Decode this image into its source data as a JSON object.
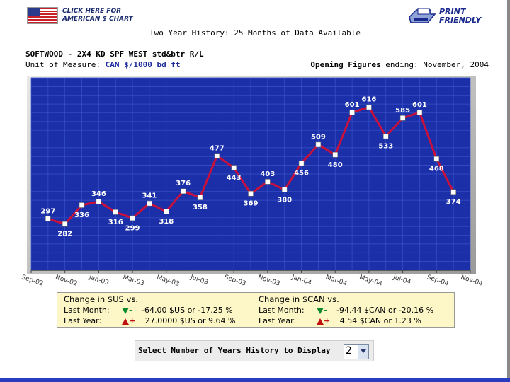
{
  "header": {
    "us_chart_link": [
      "CLICK HERE FOR",
      "AMERICAN $ CHART"
    ],
    "print_label": [
      "PRINT",
      "FRIENDLY"
    ],
    "history_title": "Two Year History: 25 Months of Data Available"
  },
  "product": {
    "name": "SOFTWOOD - 2X4 KD SPF WEST std&btr R/L",
    "uom_label": "Unit of Measure:",
    "uom_value": "CAN $/1000 bd ft",
    "opening_bold": "Opening Figures",
    "opening_rest": "ending: November, 2004"
  },
  "chart_data": {
    "type": "line",
    "x": [
      "2002-10",
      "2002-11",
      "2002-12",
      "2003-01",
      "2003-02",
      "2003-03",
      "2003-04",
      "2003-05",
      "2003-06",
      "2003-07",
      "2003-08",
      "2003-09",
      "2003-10",
      "2003-11",
      "2003-12",
      "2004-01",
      "2004-02",
      "2004-03",
      "2004-04",
      "2004-05",
      "2004-06",
      "2004-07",
      "2004-08",
      "2004-09",
      "2004-10"
    ],
    "values": [
      297,
      282,
      336,
      346,
      316,
      299,
      341,
      318,
      376,
      358,
      477,
      443,
      369,
      403,
      380,
      456,
      509,
      480,
      601,
      616,
      533,
      585,
      601,
      468,
      374
    ],
    "tick_labels": [
      {
        "label": "Sep-02",
        "x": "2002-09"
      },
      {
        "label": "Nov-02",
        "x": "2002-11"
      },
      {
        "label": "Jan-03",
        "x": "2003-01"
      },
      {
        "label": "Mar-03",
        "x": "2003-03"
      },
      {
        "label": "May-03",
        "x": "2003-05"
      },
      {
        "label": "Jul-03",
        "x": "2003-07"
      },
      {
        "label": "Sep-03",
        "x": "2003-09"
      },
      {
        "label": "Nov-03",
        "x": "2003-11"
      },
      {
        "label": "Jan-04",
        "x": "2004-01"
      },
      {
        "label": "Mar-04",
        "x": "2004-03"
      },
      {
        "label": "May-04",
        "x": "2004-05"
      },
      {
        "label": "Jul-04",
        "x": "2004-07"
      },
      {
        "label": "Sep-04",
        "x": "2004-09"
      },
      {
        "label": "Nov-04",
        "x": "2004-11"
      }
    ],
    "xlim": [
      "2002-09",
      "2004-11"
    ],
    "ylim": [
      150,
      700
    ],
    "grid": true,
    "colors": {
      "background": "#1a2fa8",
      "grid": "#3a52c8",
      "line": "#c8103c",
      "marker": "#ffffff",
      "label": "#ffffff"
    }
  },
  "change": {
    "us": {
      "head": "Change in $US vs.",
      "rows": [
        {
          "label": "Last Month:",
          "sign": "-",
          "dir": "down",
          "text": "-64.00 $US or -17.25 %"
        },
        {
          "label": "Last Year:",
          "sign": "+",
          "dir": "up",
          "text": "27.0000 $US or 9.64 %"
        }
      ]
    },
    "can": {
      "head": "Change in $CAN vs.",
      "rows": [
        {
          "label": "Last Month:",
          "sign": "-",
          "dir": "down",
          "text": "-94.44 $CAN or -20.16 %"
        },
        {
          "label": "Last Year:",
          "sign": "+",
          "dir": "up",
          "text": "4.54 $CAN or 1.23 %"
        }
      ]
    }
  },
  "years": {
    "label": "Select Number of Years History to Display",
    "selected": "2"
  }
}
